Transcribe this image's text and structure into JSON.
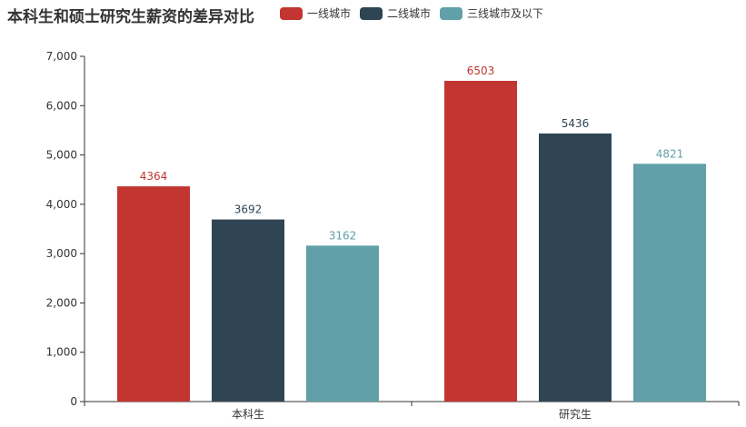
{
  "chart_data": {
    "type": "bar",
    "title": "本科生和硕士研究生薪资的差异对比",
    "categories": [
      "本科生",
      "研究生"
    ],
    "series": [
      {
        "name": "一线城市",
        "values": [
          4364,
          6503
        ],
        "color": "#c23531"
      },
      {
        "name": "二线城市",
        "values": [
          3692,
          5436
        ],
        "color": "#2f4554"
      },
      {
        "name": "三线城市及以下",
        "values": [
          3162,
          4821
        ],
        "color": "#61a0a8"
      }
    ],
    "ylim": [
      0,
      7000
    ],
    "yticks": [
      0,
      1000,
      2000,
      3000,
      4000,
      5000,
      6000,
      7000
    ],
    "ytick_labels": [
      "0",
      "1,000",
      "2,000",
      "3,000",
      "4,000",
      "5,000",
      "6,000",
      "7,000"
    ],
    "legend_position": "top",
    "grid": false
  }
}
